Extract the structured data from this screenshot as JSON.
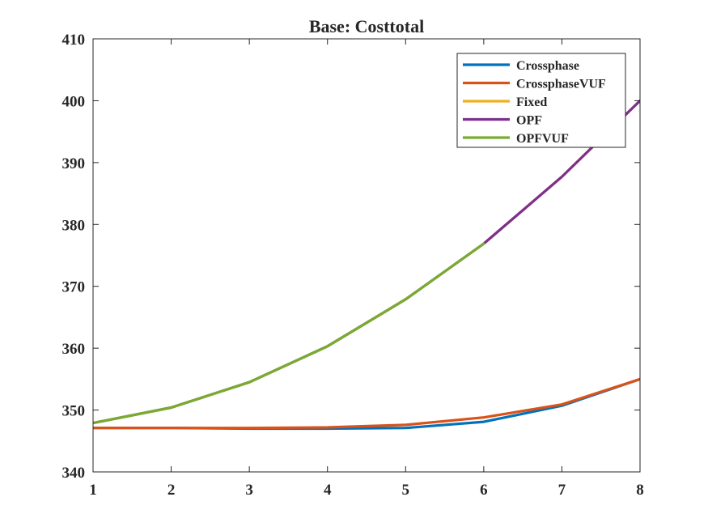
{
  "chart_data": {
    "type": "line",
    "title": "Base: Costtotal",
    "xlabel": "",
    "ylabel": "",
    "xlim": [
      1,
      8
    ],
    "ylim": [
      340,
      410
    ],
    "x_ticks": [
      "1",
      "2",
      "3",
      "4",
      "5",
      "6",
      "7",
      "8"
    ],
    "y_ticks": [
      "340",
      "350",
      "360",
      "370",
      "380",
      "390",
      "400",
      "410"
    ],
    "grid": false,
    "legend_position": "top-right",
    "series": [
      {
        "name": "Crossphase",
        "color": "#0072BD",
        "x": [
          1,
          2,
          3,
          4,
          5,
          6,
          7,
          8
        ],
        "values": [
          347.1,
          347.1,
          347.0,
          347.0,
          347.1,
          348.1,
          350.7,
          355.0
        ]
      },
      {
        "name": "CrossphaseVUF",
        "color": "#D95319",
        "x": [
          1,
          2,
          3,
          4,
          5,
          6,
          7,
          8
        ],
        "values": [
          347.1,
          347.1,
          347.1,
          347.2,
          347.6,
          348.8,
          350.9,
          355.0
        ]
      },
      {
        "name": "Fixed",
        "color": "#EDB120",
        "x": [
          1,
          2,
          3,
          4,
          5,
          6,
          7,
          8
        ],
        "values": [
          347.9,
          350.4,
          354.5,
          360.3,
          367.9,
          376.9,
          387.7,
          400.0
        ]
      },
      {
        "name": "OPF",
        "color": "#7E2F8E",
        "x": [
          1,
          2,
          3,
          4,
          5,
          6,
          7,
          8
        ],
        "values": [
          347.9,
          350.4,
          354.5,
          360.3,
          367.9,
          376.9,
          387.7,
          400.0
        ]
      },
      {
        "name": "OPFVUF",
        "color": "#77AC30",
        "x": [
          1,
          2,
          3,
          4,
          5,
          6
        ],
        "values": [
          347.9,
          350.4,
          354.5,
          360.3,
          367.9,
          376.9
        ]
      }
    ]
  }
}
